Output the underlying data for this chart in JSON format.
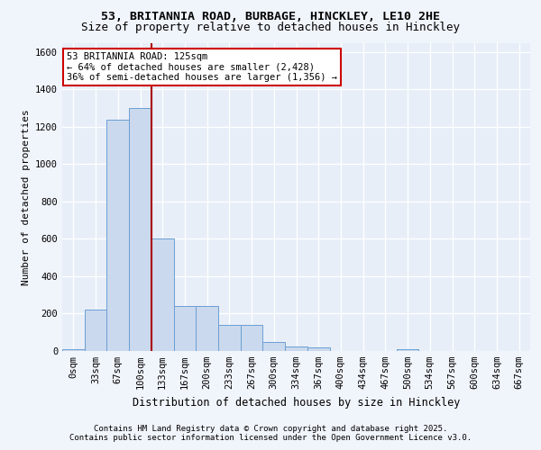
{
  "title1": "53, BRITANNIA ROAD, BURBAGE, HINCKLEY, LE10 2HE",
  "title2": "Size of property relative to detached houses in Hinckley",
  "xlabel": "Distribution of detached houses by size in Hinckley",
  "ylabel": "Number of detached properties",
  "bin_labels": [
    "0sqm",
    "33sqm",
    "67sqm",
    "100sqm",
    "133sqm",
    "167sqm",
    "200sqm",
    "233sqm",
    "267sqm",
    "300sqm",
    "334sqm",
    "367sqm",
    "400sqm",
    "434sqm",
    "467sqm",
    "500sqm",
    "534sqm",
    "567sqm",
    "600sqm",
    "634sqm",
    "667sqm"
  ],
  "bar_values": [
    8,
    220,
    1240,
    1300,
    600,
    240,
    240,
    140,
    140,
    50,
    25,
    20,
    0,
    0,
    0,
    10,
    0,
    0,
    0,
    0,
    0
  ],
  "bar_color": "#cad9ed",
  "bar_edge_color": "#6b9fd4",
  "ylim": [
    0,
    1650
  ],
  "yticks": [
    0,
    200,
    400,
    600,
    800,
    1000,
    1200,
    1400,
    1600
  ],
  "annotation_text": "53 BRITANNIA ROAD: 125sqm\n← 64% of detached houses are smaller (2,428)\n36% of semi-detached houses are larger (1,356) →",
  "vline_bin": 3.78,
  "annotation_box_facecolor": "#ffffff",
  "annotation_box_edgecolor": "#cc0000",
  "plot_bg_color": "#e8eef8",
  "fig_bg_color": "#f0f4fb",
  "grid_color": "#ffffff",
  "vline_color": "#aa0000",
  "footer1": "Contains HM Land Registry data © Crown copyright and database right 2025.",
  "footer2": "Contains public sector information licensed under the Open Government Licence v3.0.",
  "title1_fontsize": 9.5,
  "title2_fontsize": 9.0,
  "ylabel_fontsize": 8.0,
  "xlabel_fontsize": 8.5,
  "tick_fontsize": 7.5,
  "footer_fontsize": 6.5,
  "ann_fontsize": 7.5
}
